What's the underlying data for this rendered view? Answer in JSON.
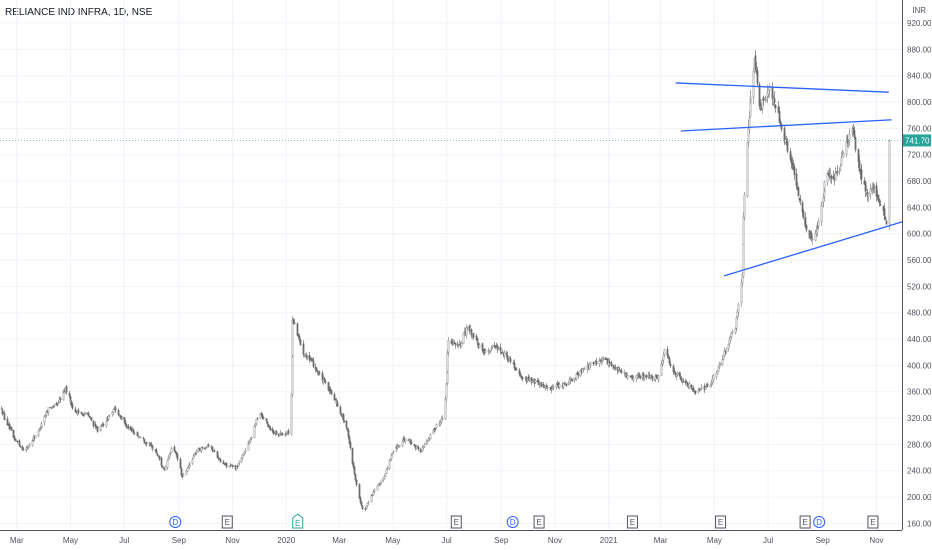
{
  "header": {
    "symbol_title": "RELIANCE IND INFRA, 1D, NSE",
    "currency": "INR"
  },
  "colors": {
    "up": "#26a69a",
    "down": "#ef5350",
    "candle": "#8a8a8a",
    "grid": "#f0f3fa",
    "trendline": "#2962ff",
    "price_tag": "#26a69a",
    "dividend": "#2962ff",
    "earnings": "#50535e"
  },
  "chart_data": {
    "type": "candlestick",
    "y_axis": {
      "position": "right",
      "range": [
        150,
        955
      ],
      "ticks": [
        "920.00",
        "880.00",
        "840.00",
        "800.00",
        "760.00",
        "720.00",
        "680.00",
        "640.00",
        "600.00",
        "560.00",
        "520.00",
        "480.00",
        "440.00",
        "400.00",
        "360.00",
        "320.00",
        "280.00",
        "240.00",
        "200.00",
        "160.00"
      ]
    },
    "x_axis": {
      "range": [
        "2019-02-10",
        "2021-11-30"
      ],
      "ticks": [
        {
          "label": "Mar",
          "date": "2019-03-01"
        },
        {
          "label": "May",
          "date": "2019-05-01"
        },
        {
          "label": "Jul",
          "date": "2019-07-01"
        },
        {
          "label": "Sep",
          "date": "2019-09-01"
        },
        {
          "label": "Nov",
          "date": "2019-11-01"
        },
        {
          "label": "2020",
          "date": "2020-01-01"
        },
        {
          "label": "Mar",
          "date": "2020-03-01"
        },
        {
          "label": "May",
          "date": "2020-05-01"
        },
        {
          "label": "Jul",
          "date": "2020-07-01"
        },
        {
          "label": "Sep",
          "date": "2020-09-01"
        },
        {
          "label": "Nov",
          "date": "2020-11-01"
        },
        {
          "label": "2021",
          "date": "2021-01-01"
        },
        {
          "label": "Mar",
          "date": "2021-03-01"
        },
        {
          "label": "May",
          "date": "2021-05-01"
        },
        {
          "label": "Jul",
          "date": "2021-07-01"
        },
        {
          "label": "Sep",
          "date": "2021-09-01"
        },
        {
          "label": "Nov",
          "date": "2021-11-01"
        }
      ]
    },
    "last_price": "741.70",
    "last_price_value": 741.7,
    "grid": true,
    "price_path": [
      [
        "2019-02-10",
        335
      ],
      [
        "2019-02-25",
        290
      ],
      [
        "2019-03-10",
        270
      ],
      [
        "2019-03-25",
        300
      ],
      [
        "2019-04-05",
        335
      ],
      [
        "2019-04-15",
        340
      ],
      [
        "2019-04-25",
        365
      ],
      [
        "2019-05-05",
        330
      ],
      [
        "2019-05-20",
        325
      ],
      [
        "2019-06-01",
        300
      ],
      [
        "2019-06-20",
        335
      ],
      [
        "2019-07-05",
        305
      ],
      [
        "2019-07-20",
        290
      ],
      [
        "2019-08-05",
        270
      ],
      [
        "2019-08-15",
        240
      ],
      [
        "2019-08-25",
        280
      ],
      [
        "2019-09-05",
        230
      ],
      [
        "2019-09-20",
        270
      ],
      [
        "2019-10-05",
        280
      ],
      [
        "2019-10-20",
        250
      ],
      [
        "2019-11-05",
        245
      ],
      [
        "2019-11-20",
        285
      ],
      [
        "2019-12-01",
        330
      ],
      [
        "2019-12-15",
        300
      ],
      [
        "2019-12-28",
        295
      ],
      [
        "2020-01-05",
        300
      ],
      [
        "2020-01-08",
        470
      ],
      [
        "2020-01-20",
        420
      ],
      [
        "2020-02-01",
        400
      ],
      [
        "2020-02-15",
        370
      ],
      [
        "2020-02-28",
        340
      ],
      [
        "2020-03-10",
        300
      ],
      [
        "2020-03-20",
        220
      ],
      [
        "2020-03-28",
        175
      ],
      [
        "2020-04-05",
        200
      ],
      [
        "2020-04-20",
        230
      ],
      [
        "2020-05-01",
        270
      ],
      [
        "2020-05-15",
        290
      ],
      [
        "2020-06-01",
        270
      ],
      [
        "2020-06-15",
        300
      ],
      [
        "2020-06-28",
        325
      ],
      [
        "2020-07-03",
        440
      ],
      [
        "2020-07-15",
        430
      ],
      [
        "2020-07-25",
        460
      ],
      [
        "2020-08-10",
        420
      ],
      [
        "2020-08-25",
        430
      ],
      [
        "2020-09-10",
        410
      ],
      [
        "2020-09-25",
        380
      ],
      [
        "2020-10-10",
        375
      ],
      [
        "2020-10-25",
        365
      ],
      [
        "2020-11-10",
        370
      ],
      [
        "2020-11-25",
        385
      ],
      [
        "2020-12-10",
        400
      ],
      [
        "2020-12-25",
        410
      ],
      [
        "2021-01-10",
        395
      ],
      [
        "2021-01-25",
        380
      ],
      [
        "2021-02-10",
        385
      ],
      [
        "2021-02-25",
        380
      ],
      [
        "2021-03-05",
        420
      ],
      [
        "2021-03-15",
        390
      ],
      [
        "2021-03-28",
        375
      ],
      [
        "2021-04-10",
        360
      ],
      [
        "2021-04-25",
        370
      ],
      [
        "2021-05-05",
        395
      ],
      [
        "2021-05-15",
        430
      ],
      [
        "2021-05-25",
        460
      ],
      [
        "2021-06-01",
        540
      ],
      [
        "2021-06-05",
        700
      ],
      [
        "2021-06-10",
        800
      ],
      [
        "2021-06-15",
        860
      ],
      [
        "2021-06-22",
        790
      ],
      [
        "2021-07-01",
        820
      ],
      [
        "2021-07-10",
        790
      ],
      [
        "2021-07-20",
        740
      ],
      [
        "2021-07-28",
        700
      ],
      [
        "2021-08-05",
        650
      ],
      [
        "2021-08-15",
        600
      ],
      [
        "2021-08-22",
        590
      ],
      [
        "2021-08-30",
        640
      ],
      [
        "2021-09-05",
        700
      ],
      [
        "2021-09-12",
        680
      ],
      [
        "2021-09-20",
        700
      ],
      [
        "2021-09-28",
        740
      ],
      [
        "2021-10-05",
        760
      ],
      [
        "2021-10-12",
        700
      ],
      [
        "2021-10-20",
        660
      ],
      [
        "2021-10-28",
        670
      ],
      [
        "2021-11-05",
        640
      ],
      [
        "2021-11-12",
        620
      ],
      [
        "2021-11-15",
        740
      ]
    ],
    "trendlines": [
      {
        "name": "upper-resistance-line",
        "from": [
          "2021-03-18",
          829
        ],
        "to": [
          "2021-11-15",
          815
        ]
      },
      {
        "name": "mid-resistance-line",
        "from": [
          "2021-03-24",
          756
        ],
        "to": [
          "2021-11-18",
          773
        ]
      },
      {
        "name": "rising-support-line",
        "from": [
          "2021-05-12",
          536
        ],
        "to": [
          "2021-11-30",
          618
        ]
      }
    ],
    "event_markers": [
      {
        "kind": "dividend",
        "label": "D",
        "date": "2019-08-28"
      },
      {
        "kind": "earnings",
        "label": "E",
        "date": "2019-10-26"
      },
      {
        "kind": "split",
        "label": "E",
        "date": "2020-01-14"
      },
      {
        "kind": "earnings",
        "label": "E",
        "date": "2020-07-12"
      },
      {
        "kind": "dividend",
        "label": "D",
        "date": "2020-09-14"
      },
      {
        "kind": "earnings",
        "label": "E",
        "date": "2020-10-14"
      },
      {
        "kind": "earnings",
        "label": "E",
        "date": "2021-01-28"
      },
      {
        "kind": "earnings",
        "label": "E",
        "date": "2021-05-08"
      },
      {
        "kind": "earnings",
        "label": "E",
        "date": "2021-08-12"
      },
      {
        "kind": "dividend",
        "label": "D",
        "date": "2021-08-28"
      },
      {
        "kind": "earnings",
        "label": "E",
        "date": "2021-10-28"
      }
    ]
  }
}
